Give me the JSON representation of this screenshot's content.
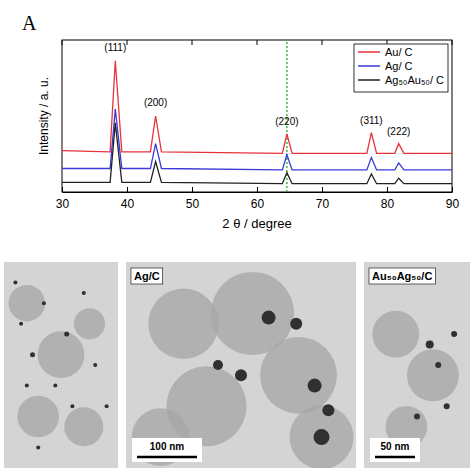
{
  "chart_data": {
    "type": "line",
    "panel_label": "A",
    "x_label": "2 θ / degree",
    "y_label": "Intensity / a. u.",
    "x": [
      30,
      37.4,
      38.2,
      39.2,
      43.6,
      44.4,
      45.3,
      63.9,
      64.6,
      65.4,
      76.9,
      77.6,
      78.4,
      81.2,
      81.8,
      82.6,
      90
    ],
    "series": [
      {
        "name": "Au/ C",
        "color": "#e8323c",
        "values": [
          30,
          29,
          95,
          29,
          29,
          55,
          29,
          28,
          42,
          28,
          28,
          43,
          28,
          28,
          35,
          28,
          28
        ]
      },
      {
        "name": "Ag/ C",
        "color": "#3a3ad6",
        "values": [
          17,
          17,
          60,
          17,
          17,
          35,
          17,
          16,
          27,
          16,
          16,
          25,
          16,
          16,
          21,
          16,
          16
        ]
      },
      {
        "name": "Ag₅₀Au₅₀/ C",
        "color": "#222222",
        "values": [
          7,
          7,
          50,
          7,
          7,
          22,
          7,
          6,
          14,
          6,
          6,
          13,
          6,
          6,
          10,
          6,
          6
        ]
      }
    ],
    "annotations": [
      {
        "text": "(111)",
        "x": 38.2,
        "y": 100
      },
      {
        "text": "(200)",
        "x": 44.4,
        "y": 60
      },
      {
        "text": "(220)",
        "x": 64.6,
        "y": 46
      },
      {
        "text": "(311)",
        "x": 77.6,
        "y": 47
      },
      {
        "text": "(222)",
        "x": 81.8,
        "y": 39
      }
    ],
    "reference_line": {
      "x": 64.6,
      "color": "#22aa22",
      "line_style": "dotted"
    },
    "xlim": [
      30,
      90
    ],
    "xticks": [
      30,
      40,
      50,
      60,
      70,
      80,
      90
    ],
    "ylim": [
      0,
      110
    ],
    "tick_labels": "x",
    "grid": false,
    "legend": "top-right"
  },
  "images": [
    {
      "label": null,
      "scale_bar": null
    },
    {
      "label": "Ag/C",
      "scale_bar": "100 nm"
    },
    {
      "label": "Au₅₀Ag₅₀/C",
      "scale_bar": "50 nm"
    }
  ]
}
